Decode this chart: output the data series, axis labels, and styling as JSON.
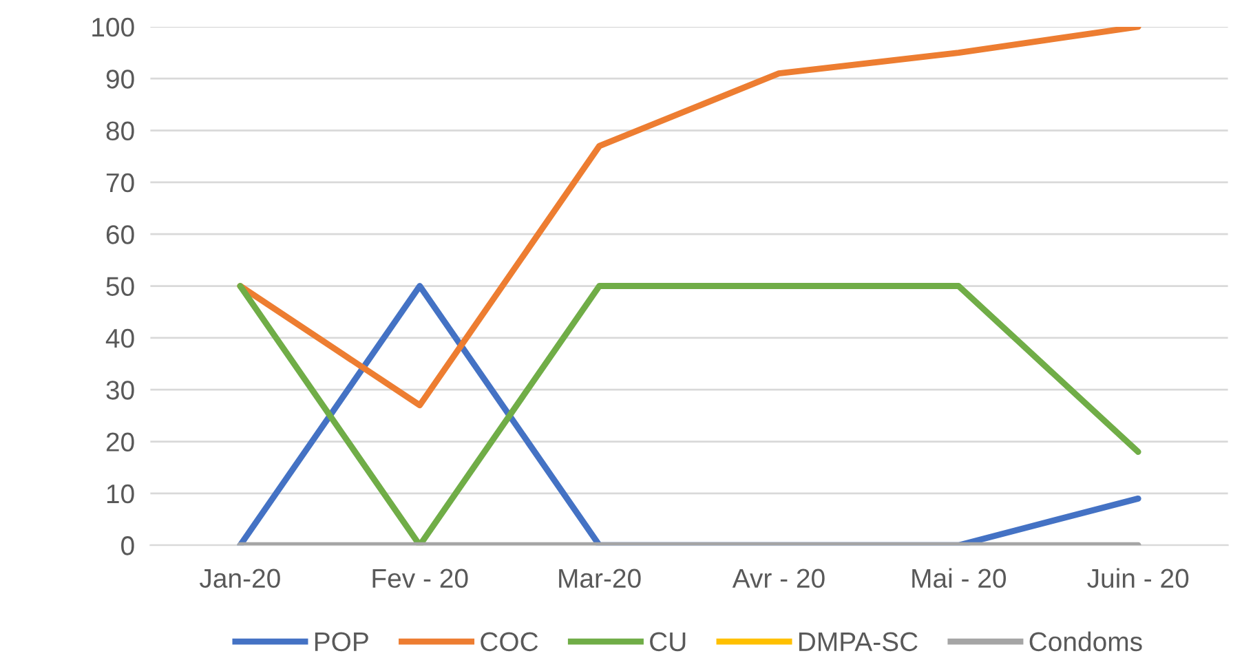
{
  "chart_data": {
    "type": "line",
    "categories": [
      "Jan-20",
      "Fev - 20",
      "Mar-20",
      "Avr - 20",
      "Mai - 20",
      "Juin - 20"
    ],
    "series": [
      {
        "name": "POP",
        "color": "#4472c4",
        "values": [
          0,
          50,
          0,
          0,
          0,
          9
        ]
      },
      {
        "name": "COC",
        "color": "#ed7d31",
        "values": [
          50,
          27,
          77,
          91,
          95,
          100
        ]
      },
      {
        "name": "CU",
        "color": "#70ad47",
        "values": [
          50,
          0,
          50,
          50,
          50,
          18
        ]
      },
      {
        "name": "DMPA-SC",
        "color": "#ffc000",
        "values": [
          null,
          null,
          null,
          null,
          null,
          null
        ]
      },
      {
        "name": "Condoms",
        "color": "#a5a5a5",
        "values": [
          0,
          0,
          0,
          0,
          0,
          0
        ]
      }
    ],
    "ylim": [
      0,
      100
    ],
    "yticks": [
      0,
      10,
      20,
      30,
      40,
      50,
      60,
      70,
      80,
      90,
      100
    ],
    "grid": "y",
    "legend": "bottom",
    "marker": "none",
    "line_style": "solid"
  }
}
